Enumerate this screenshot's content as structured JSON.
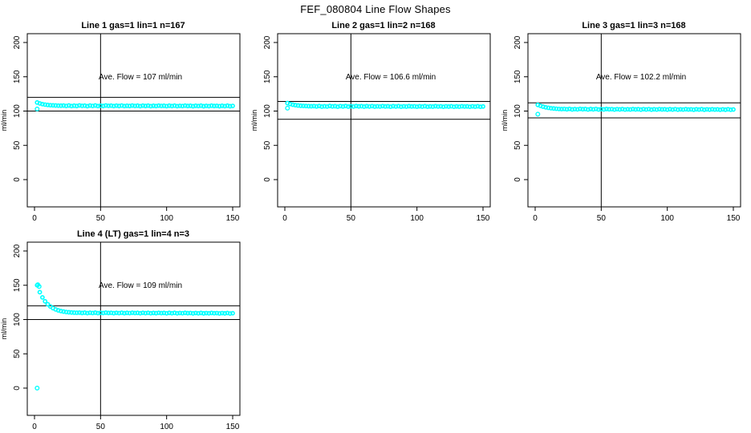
{
  "main_title": "FEF_080804  Line Flow Shapes",
  "colors": {
    "point_color": "#00FFFF",
    "axis_color": "#000000",
    "background": "#FFFFFF"
  },
  "chart_data": [
    {
      "type": "scatter",
      "title": "Line 1 gas=1 lin=1 n=167",
      "annotation": "Ave. Flow =  107  ml/min",
      "ave_flow": 107,
      "n": 167,
      "ylabel": "ml/min",
      "x_ticks": [
        0,
        50,
        100,
        150
      ],
      "y_ticks": [
        0,
        50,
        100,
        150,
        200
      ],
      "xlim": [
        0,
        155
      ],
      "ylim": [
        -40,
        213
      ],
      "vline_x": 50,
      "hlines": [
        120,
        100
      ],
      "x_start": 2,
      "x_step": 2,
      "y": [
        112.5,
        111.1,
        110.1,
        109.4,
        108.9,
        108.5,
        108.3,
        108.1,
        107.9,
        107.8,
        108.0,
        107.5,
        108.1,
        107.3,
        107.8,
        107.4,
        108.2,
        107.6,
        107.9,
        107.2,
        108.0,
        107.5,
        108.1,
        107.3,
        107.8,
        107.4,
        108.1,
        107.6,
        107.9,
        107.3,
        107.9,
        107.4,
        108.0,
        107.3,
        107.7,
        107.4,
        108.0,
        107.5,
        107.8,
        107.2,
        107.9,
        107.4,
        107.9,
        107.2,
        107.7,
        107.3,
        107.9,
        107.5,
        107.7,
        107.2,
        107.8,
        107.3,
        107.9,
        107.2,
        107.6,
        107.3,
        107.9,
        107.4,
        107.7,
        107.1,
        107.7,
        107.3,
        107.8,
        107.1,
        107.6,
        107.2,
        107.8,
        107.4,
        107.6,
        107.1,
        107.7,
        107.2,
        107.8,
        107.1,
        107.5
      ],
      "outliers": [
        [
          2,
          103
        ]
      ]
    },
    {
      "type": "scatter",
      "title": "Line 2 gas=1 lin=2 n=168",
      "annotation": "Ave. Flow =  106.6  ml/min",
      "ave_flow": 106.6,
      "n": 168,
      "ylabel": "ml/min",
      "x_ticks": [
        0,
        50,
        100,
        150
      ],
      "y_ticks": [
        0,
        50,
        100,
        150,
        200
      ],
      "xlim": [
        0,
        155
      ],
      "ylim": [
        -40,
        213
      ],
      "vline_x": 50,
      "hlines": [
        114,
        88
      ],
      "x_start": 2,
      "x_step": 2,
      "y": [
        111.6,
        110.3,
        109.3,
        108.6,
        108.1,
        107.7,
        107.5,
        107.3,
        107.1,
        107.0,
        107.2,
        106.7,
        107.3,
        106.5,
        107.0,
        106.6,
        107.4,
        106.8,
        107.1,
        106.4,
        107.2,
        106.7,
        107.3,
        106.5,
        107.0,
        106.6,
        107.3,
        106.8,
        107.1,
        106.5,
        107.1,
        106.6,
        107.2,
        106.5,
        106.9,
        106.6,
        107.2,
        106.7,
        107.0,
        106.4,
        107.1,
        106.6,
        107.1,
        106.4,
        106.9,
        106.5,
        107.1,
        106.7,
        106.9,
        106.4,
        107.0,
        106.5,
        107.1,
        106.4,
        106.8,
        106.5,
        107.1,
        106.6,
        106.9,
        106.3,
        106.9,
        106.5,
        107.0,
        106.3,
        106.8,
        106.4,
        107.0,
        106.6,
        106.8,
        106.3,
        106.9,
        106.4,
        107.0,
        106.3,
        106.7
      ],
      "outliers": [
        [
          2,
          104.2
        ]
      ]
    },
    {
      "type": "scatter",
      "title": "Line 3 gas=1 lin=3 n=168",
      "annotation": "Ave. Flow =  102.2  ml/min",
      "ave_flow": 102.2,
      "n": 168,
      "ylabel": "ml/min",
      "x_ticks": [
        0,
        50,
        100,
        150
      ],
      "y_ticks": [
        0,
        50,
        100,
        150,
        200
      ],
      "xlim": [
        0,
        155
      ],
      "ylim": [
        -40,
        213
      ],
      "vline_x": 50,
      "hlines": [
        112,
        90
      ],
      "x_start": 2,
      "x_step": 2,
      "y": [
        109.0,
        107.6,
        106.4,
        105.4,
        104.7,
        104.1,
        103.7,
        103.4,
        103.1,
        102.9,
        103.1,
        102.6,
        103.2,
        102.4,
        102.9,
        102.5,
        103.2,
        102.7,
        103.0,
        102.3,
        103.0,
        102.5,
        103.1,
        102.3,
        102.8,
        102.4,
        103.0,
        102.6,
        102.8,
        102.2,
        102.8,
        102.4,
        102.9,
        102.2,
        102.6,
        102.3,
        102.9,
        102.4,
        102.7,
        102.1,
        102.8,
        102.3,
        102.8,
        102.1,
        102.6,
        102.2,
        102.8,
        102.4,
        102.6,
        102.1,
        102.7,
        102.2,
        102.8,
        102.1,
        102.5,
        102.2,
        102.7,
        102.3,
        102.5,
        102.0,
        102.6,
        102.2,
        102.7,
        102.0,
        102.5,
        102.1,
        102.6,
        102.2,
        102.4,
        101.9,
        102.5,
        102.0,
        102.6,
        101.9,
        102.3
      ],
      "outliers": [
        [
          2,
          95.5
        ]
      ]
    },
    {
      "type": "scatter",
      "title": "Line 4 (LT) gas=1 lin=4 n=3",
      "annotation": "Ave. Flow =  109  ml/min",
      "ave_flow": 109,
      "n": 3,
      "ylabel": "ml/min",
      "x_ticks": [
        0,
        50,
        100,
        150
      ],
      "y_ticks": [
        0,
        50,
        100,
        150,
        200
      ],
      "xlim": [
        0,
        155
      ],
      "ylim": [
        -40,
        213
      ],
      "vline_x": 50,
      "hlines": [
        120,
        100
      ],
      "x_start": 2,
      "x_step": 2,
      "y": [
        150.0,
        139.9,
        132.3,
        126.6,
        122.3,
        119.0,
        116.6,
        114.8,
        113.4,
        112.4,
        111.6,
        111.0,
        110.6,
        110.3,
        110.0,
        109.9,
        110.1,
        109.6,
        110.0,
        109.4,
        109.9,
        109.5,
        110.0,
        109.4,
        109.8,
        109.5,
        110.0,
        109.6,
        109.8,
        109.3,
        109.8,
        109.4,
        109.9,
        109.3,
        109.7,
        109.4,
        109.9,
        109.5,
        109.7,
        109.2,
        109.8,
        109.4,
        109.8,
        109.2,
        109.6,
        109.3,
        109.8,
        109.4,
        109.6,
        109.1,
        109.7,
        109.2,
        109.7,
        109.1,
        109.5,
        109.2,
        109.7,
        109.3,
        109.5,
        109.0,
        109.5,
        109.1,
        109.6,
        109.0,
        109.4,
        109.1,
        109.6,
        109.2,
        109.4,
        108.9,
        109.4,
        109.0,
        109.5,
        108.8,
        109.2
      ],
      "outliers": [
        [
          2,
          0
        ],
        [
          2.5,
          150.8
        ],
        [
          3.5,
          148.2
        ]
      ]
    }
  ]
}
